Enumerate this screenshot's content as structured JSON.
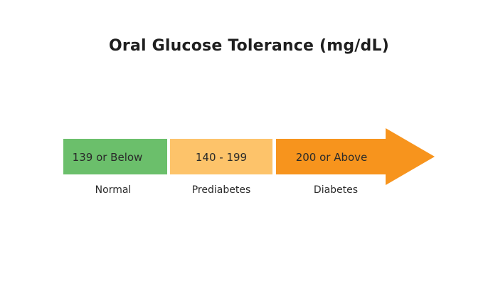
{
  "title": "Oral Glucose Tolerance (mg/dL)",
  "segments": [
    {
      "range": "139 or Below",
      "category": "Normal",
      "color": "#6bbf6b"
    },
    {
      "range": "140 - 199",
      "category": "Prediabetes",
      "color": "#fdc36a"
    },
    {
      "range": "200 or Above",
      "category": "Diabetes",
      "color": "#f7941d"
    }
  ]
}
